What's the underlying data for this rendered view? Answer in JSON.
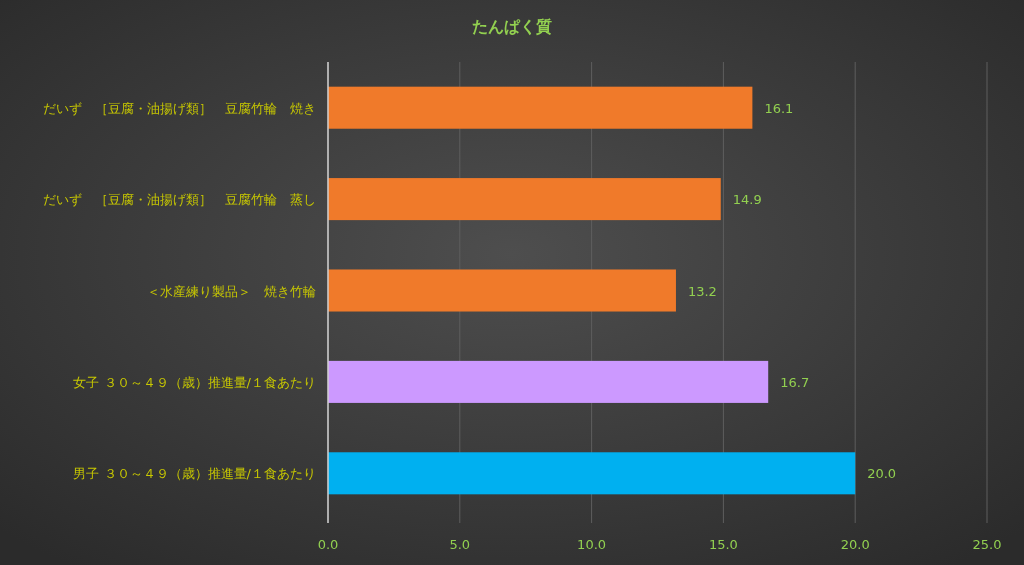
{
  "chart_data": {
    "type": "bar",
    "orientation": "horizontal",
    "title": "たんぱく質",
    "categories": [
      "だいず　［豆腐・油揚げ類］　豆腐竹輪　焼き",
      "だいず　［豆腐・油揚げ類］　豆腐竹輪　蒸し",
      "＜水産練り製品＞　焼き竹輪",
      "女子 ３０～４９（歳）推進量/１食あたり",
      "男子 ３０～４９（歳）推進量/１食あたり"
    ],
    "values": [
      16.1,
      14.9,
      13.2,
      16.7,
      20.0
    ],
    "colors": [
      "#f07a2a",
      "#f07a2a",
      "#f07a2a",
      "#cc99ff",
      "#00b0f0"
    ],
    "value_labels": [
      "16.1",
      "14.9",
      "13.2",
      "16.7",
      "20.0"
    ],
    "xlim": [
      0,
      25
    ],
    "xticks": [
      {
        "value": 0,
        "label": "0.0"
      },
      {
        "value": 5,
        "label": "5.0"
      },
      {
        "value": 10,
        "label": "10.0"
      },
      {
        "value": 15,
        "label": "15.0"
      },
      {
        "value": 20,
        "label": "20.0"
      },
      {
        "value": 25,
        "label": "25.0"
      }
    ],
    "grid": "x"
  }
}
